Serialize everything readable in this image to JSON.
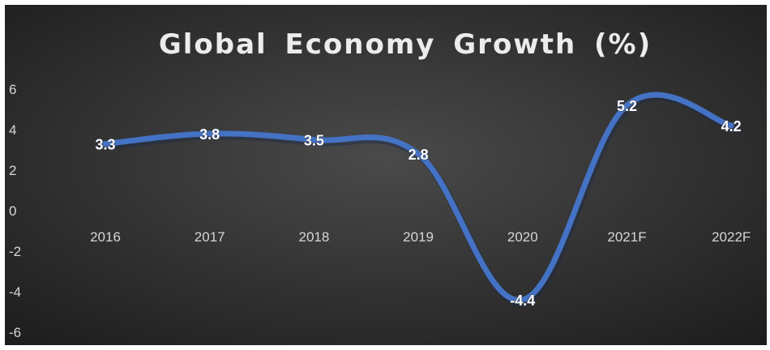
{
  "chart_data": {
    "type": "line",
    "title": "Global Economy Growth (%)",
    "categories": [
      "2016",
      "2017",
      "2018",
      "2019",
      "2020",
      "2021F",
      "2022F"
    ],
    "series": [
      {
        "values": [
          3.3,
          3.8,
          3.5,
          2.8,
          -4.4,
          5.2,
          4.2
        ]
      }
    ],
    "data_labels": [
      "3.3",
      "3.8",
      "3.5",
      "2.8",
      "-4.4",
      "5.2",
      "4.2"
    ],
    "y_ticks": [
      "6",
      "4",
      "2",
      "0",
      "-2",
      "-4",
      "-6"
    ],
    "ylim": [
      -6,
      6
    ],
    "grid": false,
    "legend": "none",
    "colors": {
      "background_center": "#4a4a4a",
      "background_edge": "#1c1c1c",
      "line": "#4472c4",
      "text": "#d9d9d9"
    }
  }
}
